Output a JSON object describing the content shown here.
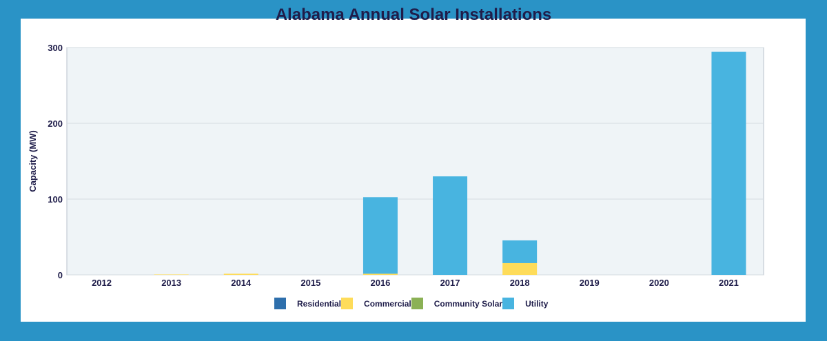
{
  "chart_data": {
    "type": "bar",
    "stacked": true,
    "title": "Alabama Annual Solar Installations",
    "xlabel": "",
    "ylabel": "Capacity (MW)",
    "ylim": [
      0,
      300
    ],
    "yticks": [
      0,
      100,
      200,
      300
    ],
    "grid": true,
    "legend": "bottom",
    "categories": [
      "2012",
      "2013",
      "2014",
      "2015",
      "2016",
      "2017",
      "2018",
      "2019",
      "2020",
      "2021"
    ],
    "series": [
      {
        "name": "Residential",
        "color": "#2e6fac",
        "values": [
          0,
          0,
          0,
          0,
          0,
          0,
          0,
          0,
          0,
          0
        ]
      },
      {
        "name": "Commercial",
        "color": "#fedc5a",
        "values": [
          0,
          0.5,
          1.5,
          0,
          1.5,
          0,
          15.5,
          0,
          0,
          0
        ]
      },
      {
        "name": "Community Solar",
        "color": "#8bb155",
        "values": [
          0,
          0,
          0,
          0,
          0,
          0,
          0,
          0,
          0,
          0
        ]
      },
      {
        "name": "Utility",
        "color": "#48b4e0",
        "values": [
          0,
          0,
          0,
          0,
          101,
          130,
          30,
          0,
          0,
          294.5
        ]
      }
    ]
  }
}
